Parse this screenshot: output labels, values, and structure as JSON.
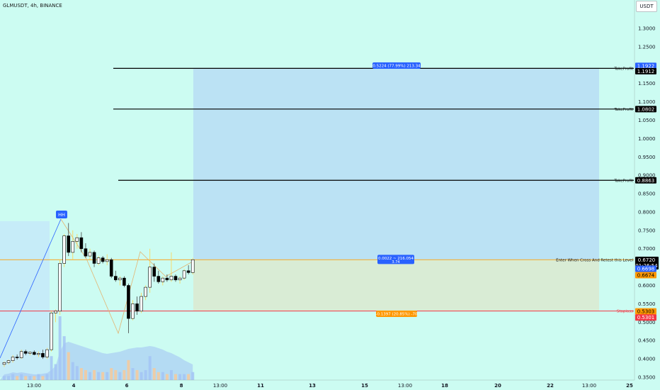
{
  "header": {
    "symbol_line": "GLMUSDT, 4h, BINANCE",
    "currency_button": "USDT"
  },
  "colors": {
    "background": "#ccfcf2",
    "profit_zone": "#bbe2f4",
    "loss_zone": "#d9ecd5",
    "up_candle": "#ffffff",
    "down_candle": "#000000",
    "stop_line": "#f23645",
    "entry_line": "#f0b54a",
    "target_line": "#000000",
    "label_blue": "#2962ff",
    "label_orange": "#ff9800",
    "volume_blue": "#a3c4f4",
    "volume_orange": "#f7c99a"
  },
  "chart_data": {
    "type": "candlestick",
    "symbol": "GLMUSDT",
    "interval": "4h",
    "exchange": "BINANCE",
    "ylim": [
      0.35,
      1.35
    ],
    "y_ticks": [
      "1.3000",
      "1.2500",
      "1.2000",
      "1.1500",
      "1.1000",
      "1.0500",
      "1.0000",
      "0.9500",
      "0.9000",
      "0.8500",
      "0.8000",
      "0.7500",
      "0.7000",
      "0.6500",
      "0.6000",
      "0.5500",
      "0.5000",
      "0.4500",
      "0.4000",
      "0.3500"
    ],
    "x_ticks": [
      {
        "label": "13:00",
        "bold": false
      },
      {
        "label": "4",
        "bold": true
      },
      {
        "label": "6",
        "bold": true
      },
      {
        "label": "8",
        "bold": true
      },
      {
        "label": "13:00",
        "bold": false
      },
      {
        "label": "11",
        "bold": true
      },
      {
        "label": "13",
        "bold": true
      },
      {
        "label": "15",
        "bold": true
      },
      {
        "label": "13:00",
        "bold": false
      },
      {
        "label": "18",
        "bold": true
      },
      {
        "label": "20",
        "bold": true
      },
      {
        "label": "22",
        "bold": true
      },
      {
        "label": "13:00",
        "bold": false
      },
      {
        "label": "25",
        "bold": true
      }
    ],
    "candles": [
      {
        "o": 0.385,
        "h": 0.393,
        "l": 0.378,
        "c": 0.39
      },
      {
        "o": 0.39,
        "h": 0.398,
        "l": 0.385,
        "c": 0.395
      },
      {
        "o": 0.395,
        "h": 0.41,
        "l": 0.39,
        "c": 0.405
      },
      {
        "o": 0.405,
        "h": 0.412,
        "l": 0.398,
        "c": 0.403
      },
      {
        "o": 0.403,
        "h": 0.425,
        "l": 0.4,
        "c": 0.42
      },
      {
        "o": 0.42,
        "h": 0.425,
        "l": 0.41,
        "c": 0.415
      },
      {
        "o": 0.415,
        "h": 0.42,
        "l": 0.41,
        "c": 0.418
      },
      {
        "o": 0.418,
        "h": 0.423,
        "l": 0.41,
        "c": 0.412
      },
      {
        "o": 0.412,
        "h": 0.42,
        "l": 0.405,
        "c": 0.415
      },
      {
        "o": 0.415,
        "h": 0.425,
        "l": 0.4,
        "c": 0.405
      },
      {
        "o": 0.405,
        "h": 0.43,
        "l": 0.4,
        "c": 0.425
      },
      {
        "o": 0.425,
        "h": 0.53,
        "l": 0.42,
        "c": 0.525
      },
      {
        "o": 0.525,
        "h": 0.535,
        "l": 0.5,
        "c": 0.53
      },
      {
        "o": 0.53,
        "h": 0.67,
        "l": 0.52,
        "c": 0.66
      },
      {
        "o": 0.66,
        "h": 0.74,
        "l": 0.65,
        "c": 0.735
      },
      {
        "o": 0.735,
        "h": 0.77,
        "l": 0.68,
        "c": 0.69
      },
      {
        "o": 0.69,
        "h": 0.75,
        "l": 0.67,
        "c": 0.72
      },
      {
        "o": 0.72,
        "h": 0.74,
        "l": 0.7,
        "c": 0.73
      },
      {
        "o": 0.73,
        "h": 0.745,
        "l": 0.69,
        "c": 0.7
      },
      {
        "o": 0.7,
        "h": 0.715,
        "l": 0.675,
        "c": 0.68
      },
      {
        "o": 0.68,
        "h": 0.7,
        "l": 0.67,
        "c": 0.69
      },
      {
        "o": 0.69,
        "h": 0.695,
        "l": 0.65,
        "c": 0.66
      },
      {
        "o": 0.66,
        "h": 0.68,
        "l": 0.655,
        "c": 0.675
      },
      {
        "o": 0.675,
        "h": 0.68,
        "l": 0.66,
        "c": 0.665
      },
      {
        "o": 0.665,
        "h": 0.685,
        "l": 0.655,
        "c": 0.67
      },
      {
        "o": 0.67,
        "h": 0.675,
        "l": 0.62,
        "c": 0.625
      },
      {
        "o": 0.625,
        "h": 0.64,
        "l": 0.61,
        "c": 0.615
      },
      {
        "o": 0.615,
        "h": 0.625,
        "l": 0.6,
        "c": 0.62
      },
      {
        "o": 0.62,
        "h": 0.625,
        "l": 0.595,
        "c": 0.6
      },
      {
        "o": 0.6,
        "h": 0.605,
        "l": 0.47,
        "c": 0.51
      },
      {
        "o": 0.51,
        "h": 0.56,
        "l": 0.505,
        "c": 0.55
      },
      {
        "o": 0.55,
        "h": 0.57,
        "l": 0.52,
        "c": 0.53
      },
      {
        "o": 0.53,
        "h": 0.58,
        "l": 0.525,
        "c": 0.57
      },
      {
        "o": 0.57,
        "h": 0.6,
        "l": 0.56,
        "c": 0.595
      },
      {
        "o": 0.595,
        "h": 0.7,
        "l": 0.58,
        "c": 0.65
      },
      {
        "o": 0.65,
        "h": 0.66,
        "l": 0.61,
        "c": 0.625
      },
      {
        "o": 0.625,
        "h": 0.64,
        "l": 0.605,
        "c": 0.61
      },
      {
        "o": 0.61,
        "h": 0.625,
        "l": 0.6,
        "c": 0.62
      },
      {
        "o": 0.62,
        "h": 0.63,
        "l": 0.61,
        "c": 0.615
      },
      {
        "o": 0.615,
        "h": 0.69,
        "l": 0.61,
        "c": 0.625
      },
      {
        "o": 0.625,
        "h": 0.63,
        "l": 0.61,
        "c": 0.615
      },
      {
        "o": 0.615,
        "h": 0.625,
        "l": 0.605,
        "c": 0.62
      },
      {
        "o": 0.62,
        "h": 0.645,
        "l": 0.615,
        "c": 0.64
      },
      {
        "o": 0.64,
        "h": 0.655,
        "l": 0.63,
        "c": 0.635
      },
      {
        "o": 0.635,
        "h": 0.675,
        "l": 0.63,
        "c": 0.67
      }
    ],
    "volumes": [
      2,
      2,
      3,
      2,
      3,
      2,
      2,
      2,
      3,
      2,
      3,
      12,
      8,
      32,
      22,
      14,
      9,
      7,
      6,
      5,
      4,
      5,
      4,
      4,
      4,
      6,
      5,
      4,
      5,
      10,
      6,
      5,
      4,
      5,
      12,
      6,
      4,
      4,
      3,
      5,
      3,
      3,
      3,
      3,
      4
    ],
    "volume_area": [
      8,
      9,
      11,
      10,
      11,
      10,
      9,
      8,
      8,
      9,
      10,
      14,
      20,
      40,
      52,
      54,
      52,
      50,
      48,
      46,
      44,
      42,
      40,
      38,
      37,
      38,
      39,
      40,
      42,
      44,
      45,
      46,
      46,
      47,
      48,
      47,
      45,
      43,
      40,
      38,
      35,
      32,
      28,
      25,
      22
    ],
    "levels": {
      "take_profit_1": 1.1912,
      "take_profit_2": 1.0802,
      "take_profit_3": 0.8863,
      "entry": 0.6698,
      "stop": 0.5303
    },
    "take_profit_tag": "TakeProfit",
    "entry_tag": "Enter When Cross And Retest this Level",
    "stop_tag": "Stoploss",
    "hh_label": "HH",
    "tp_level_labels": [
      "1.1912",
      "1.0802",
      "0.8863"
    ],
    "position": {
      "entry": 0.6698,
      "target": 1.1922,
      "stop": 0.5301,
      "target_label": "0.5224 (77.99%) 213.34",
      "center_label_line1": "0.0022 ~ 216.054",
      "center_label_line2": "3.74",
      "stop_label": "-0.1397 (20.85%) -70"
    },
    "price_labels": {
      "target_box": "1.1922",
      "tp1_box": "1.1912",
      "tp2_box": "1.0802",
      "tp3_box": "0.8863",
      "last_price": "0.6720",
      "countdown": "01:26:54",
      "entry_box": "0.6698",
      "orange_box": "0.6674",
      "stop_box_1": "0.5303",
      "stop_box_2": "0.5301"
    }
  }
}
